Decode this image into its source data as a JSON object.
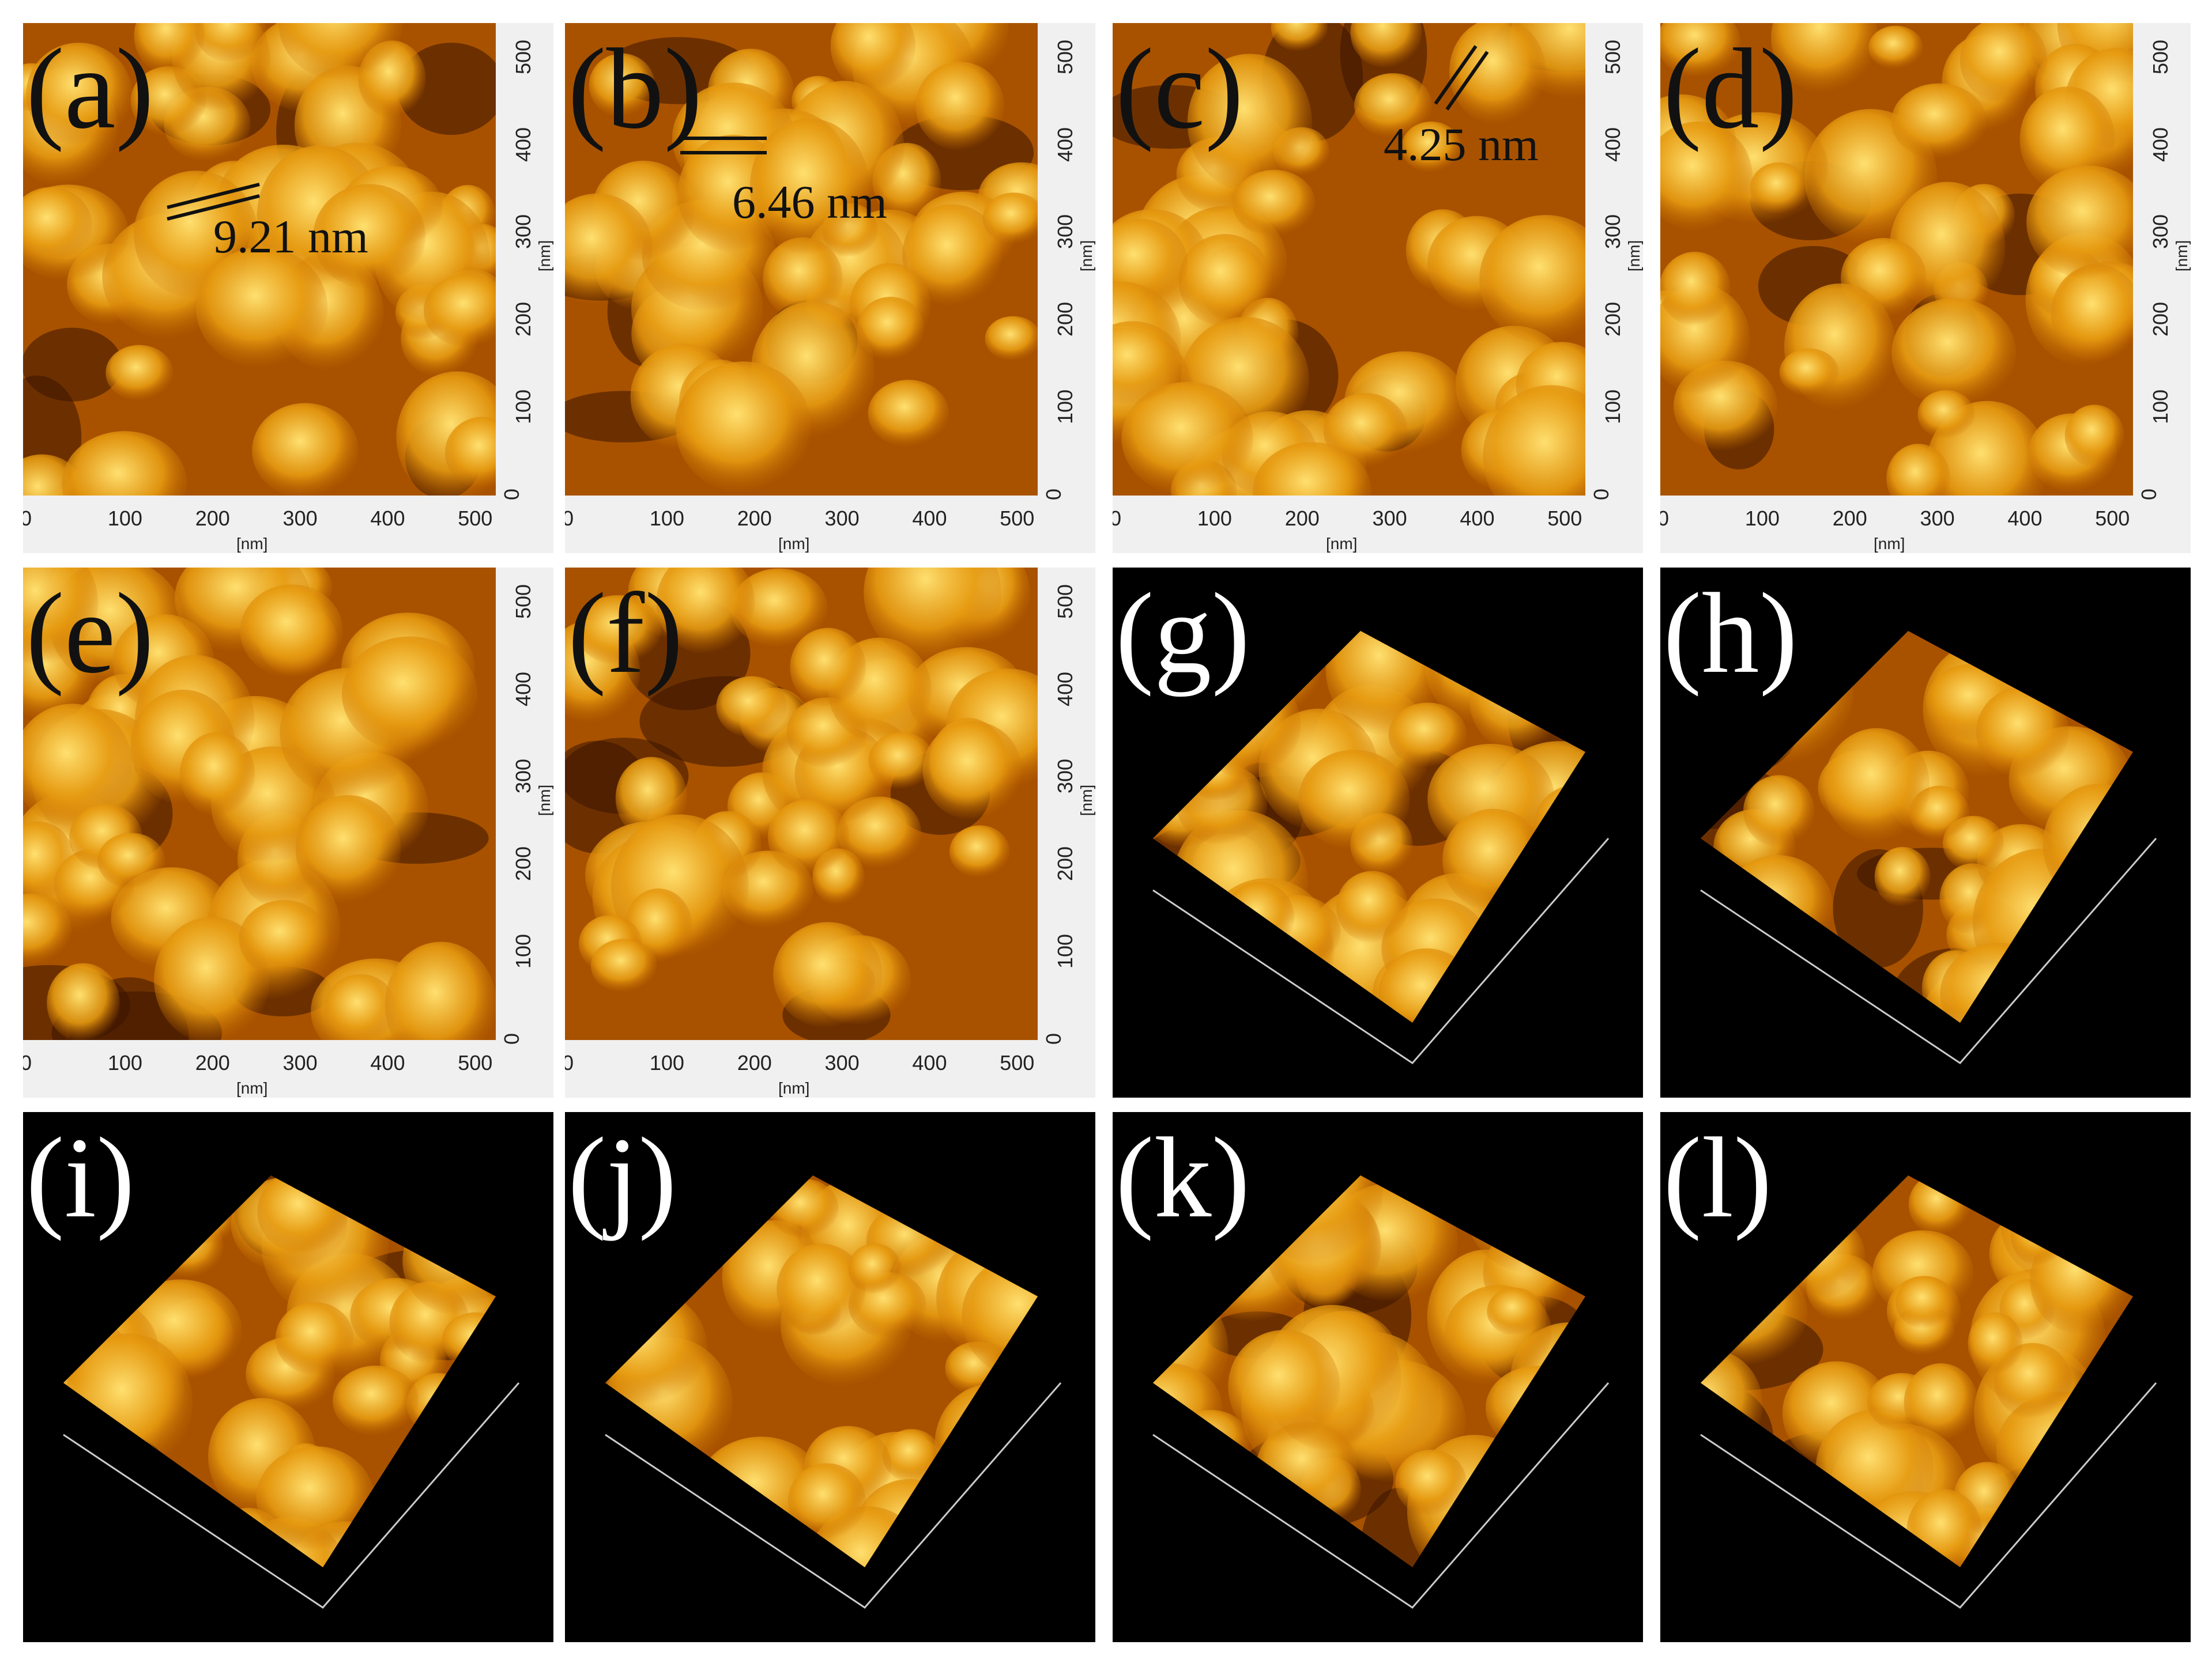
{
  "figure": {
    "panels": [
      {
        "id": "a",
        "label": "(a)",
        "kind": "2d",
        "measurement": "9.21 nm"
      },
      {
        "id": "b",
        "label": "(b)",
        "kind": "2d",
        "measurement": "6.46 nm"
      },
      {
        "id": "c",
        "label": "(c)",
        "kind": "2d",
        "measurement": "4.25 nm"
      },
      {
        "id": "d",
        "label": "(d)",
        "kind": "2d"
      },
      {
        "id": "e",
        "label": "(e)",
        "kind": "2d"
      },
      {
        "id": "f",
        "label": "(f)",
        "kind": "2d"
      },
      {
        "id": "g",
        "label": "(g)",
        "kind": "3d"
      },
      {
        "id": "h",
        "label": "(h)",
        "kind": "3d"
      },
      {
        "id": "i",
        "label": "(i)",
        "kind": "3d"
      },
      {
        "id": "j",
        "label": "(j)",
        "kind": "3d"
      },
      {
        "id": "k",
        "label": "(k)",
        "kind": "3d"
      },
      {
        "id": "l",
        "label": "(l)",
        "kind": "3d"
      }
    ],
    "x_ticks": [
      "0",
      "100",
      "200",
      "300",
      "400",
      "500"
    ],
    "y_ticks": [
      "0",
      "100",
      "200",
      "300",
      "400",
      "500"
    ],
    "axis_unit": "[nm]",
    "colors": {
      "afm_dark": "#3a1400",
      "afm_mid": "#c46a00",
      "afm_bright": "#ffe070",
      "axis_panel_bg": "#f0f0f0",
      "render_bg": "#000000"
    }
  }
}
